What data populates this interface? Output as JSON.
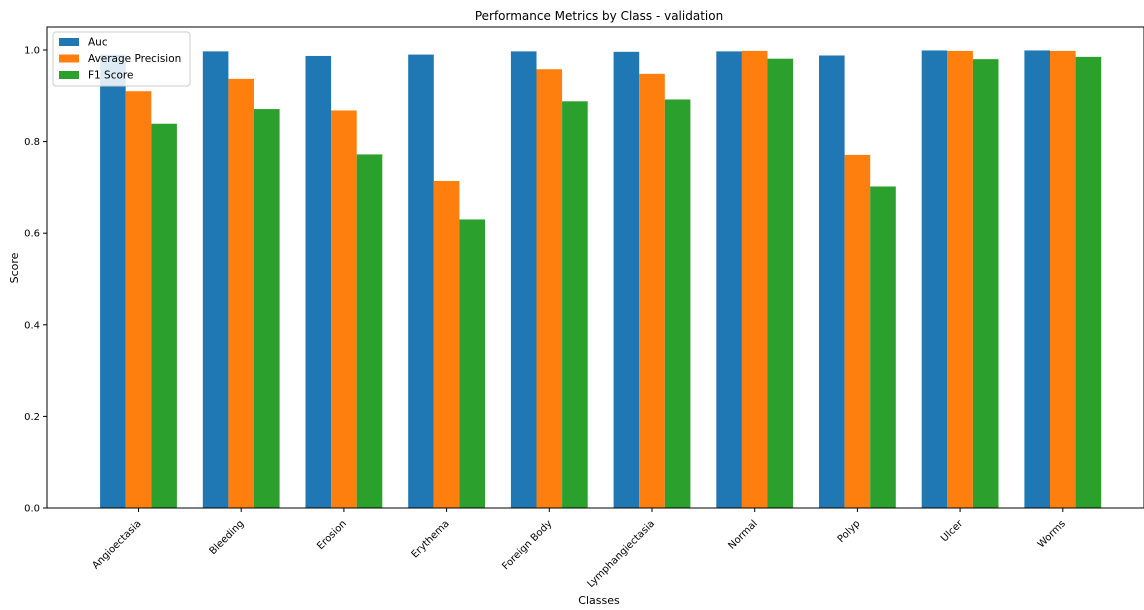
{
  "chart_data": {
    "type": "bar",
    "title": "Performance Metrics by Class - validation",
    "xlabel": "Classes",
    "ylabel": "Score",
    "ylim": [
      0,
      1.05
    ],
    "yticks": [
      "0.0",
      "0.2",
      "0.4",
      "0.6",
      "0.8",
      "1.0"
    ],
    "grid": false,
    "legend_position": "top-left",
    "categories": [
      "Angioectasia",
      "Bleeding",
      "Erosion",
      "Erythema",
      "Foreign Body",
      "Lymphangiectasia",
      "Normal",
      "Polyp",
      "Ulcer",
      "Worms"
    ],
    "series": [
      {
        "name": "Auc",
        "color": "#1f77b4",
        "values": [
          0.99,
          0.997,
          0.987,
          0.99,
          0.997,
          0.996,
          0.997,
          0.988,
          0.999,
          0.999
        ]
      },
      {
        "name": "Average Precision",
        "color": "#ff7f0e",
        "values": [
          0.91,
          0.937,
          0.868,
          0.714,
          0.958,
          0.948,
          0.998,
          0.771,
          0.998,
          0.998
        ]
      },
      {
        "name": "F1 Score",
        "color": "#2ca02c",
        "values": [
          0.839,
          0.871,
          0.772,
          0.63,
          0.888,
          0.892,
          0.981,
          0.702,
          0.98,
          0.985
        ]
      }
    ]
  }
}
